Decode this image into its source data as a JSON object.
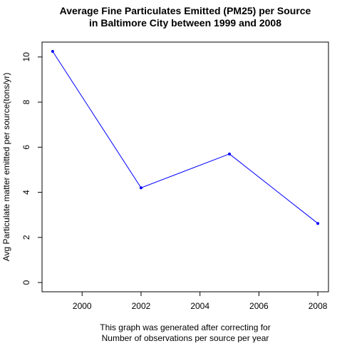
{
  "chart_data": {
    "type": "line",
    "title_lines": [
      "Average Fine Particulates Emitted (PM25) per Source",
      "in Baltimore City between 1999 and 2008"
    ],
    "ylabel": "Avg Particulate matter emitted per source(tons/yr)",
    "xlabel_lines": [
      "This graph was generated after correcting for",
      "Number of observations per source per year"
    ],
    "x": [
      1999,
      2002,
      2005,
      2008
    ],
    "series": [
      {
        "values": [
          10.25,
          4.2,
          5.7,
          2.62
        ],
        "color": "#0000ff"
      }
    ],
    "xlim": [
      1998.64,
      2008.36
    ],
    "ylim": [
      -0.41,
      10.66
    ],
    "x_ticks": [
      2000,
      2002,
      2004,
      2006,
      2008
    ],
    "x_tick_labels": [
      "2000",
      "2002",
      "2004",
      "2006",
      "2008"
    ],
    "y_ticks": [
      0,
      2,
      4,
      6,
      8,
      10
    ],
    "y_tick_labels": [
      "0",
      "2",
      "4",
      "6",
      "8",
      "10"
    ],
    "y_tick_label_orientation": "rotated",
    "grid": false,
    "legend": "none",
    "frame": "box",
    "marker": "dot"
  }
}
